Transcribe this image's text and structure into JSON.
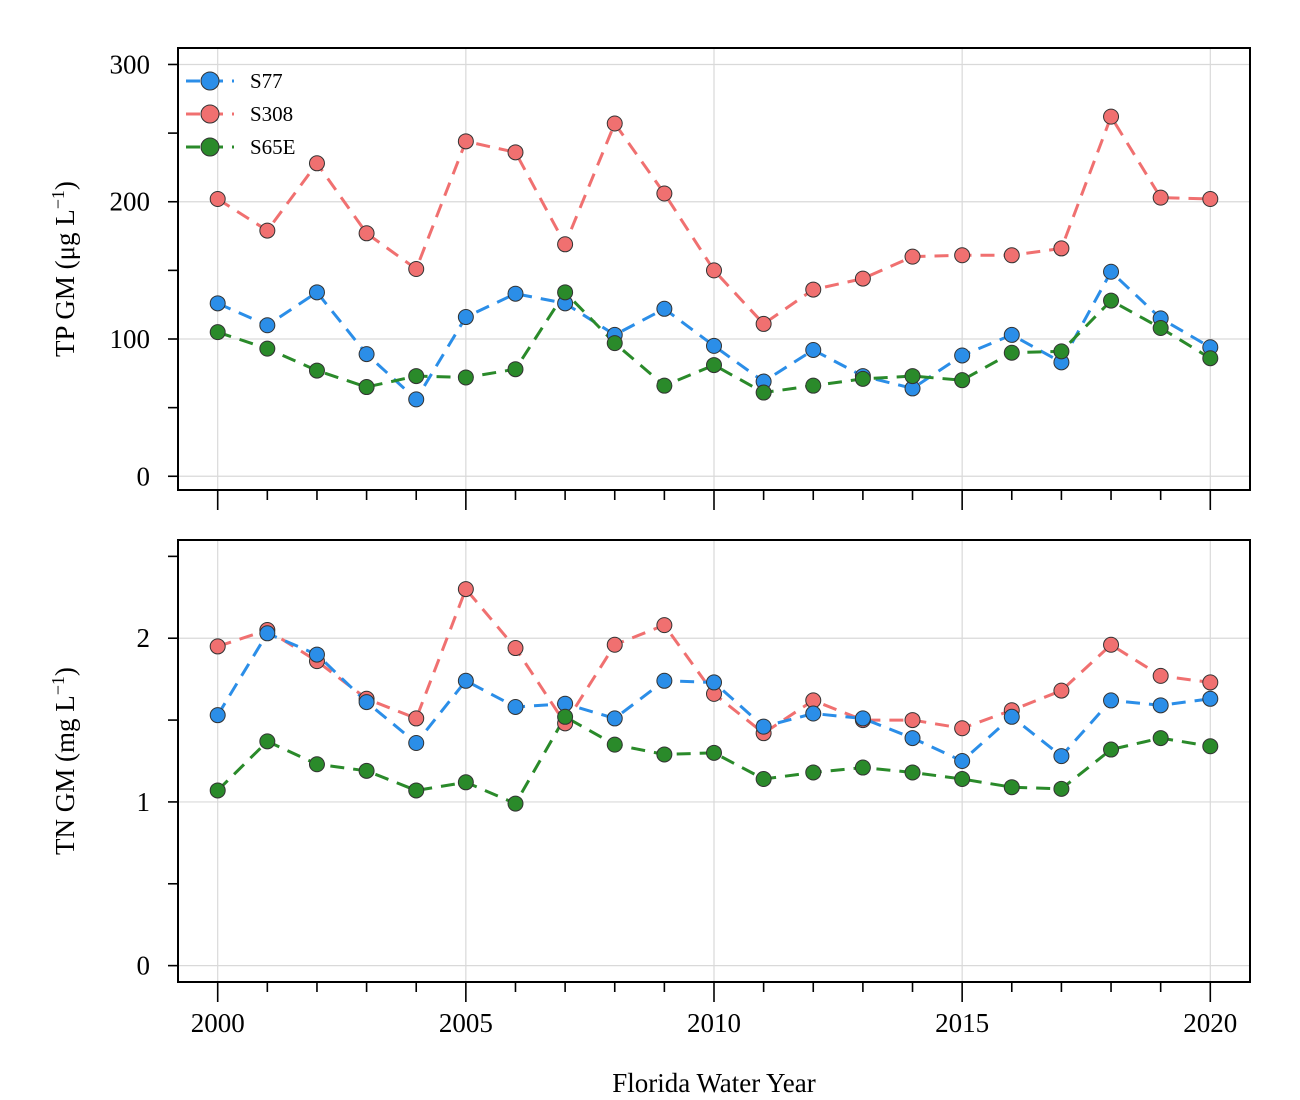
{
  "chart_data": {
    "type": "line",
    "xlabel": "Florida Water Year",
    "x": [
      2000,
      2001,
      2002,
      2003,
      2004,
      2005,
      2006,
      2007,
      2008,
      2009,
      2010,
      2011,
      2012,
      2013,
      2014,
      2015,
      2016,
      2017,
      2018,
      2019,
      2020
    ],
    "xlim": [
      1999.2,
      2020.8
    ],
    "xticks": [
      2000,
      2005,
      2010,
      2015,
      2020
    ],
    "xtick_labels": [
      "2000",
      "2005",
      "2010",
      "2015",
      "2020"
    ],
    "grid": true,
    "legend": {
      "position": "top-left",
      "entries": [
        "S77",
        "S308",
        "S65E"
      ]
    },
    "colors": {
      "S77": "#2b8ee8",
      "S308": "#f07070",
      "S65E": "#2a8a2a"
    },
    "panels": [
      {
        "ylabel_prefix": "TP GM (μg L",
        "ylabel_sup": "−1",
        "ylabel_suffix": ")",
        "ylim": [
          -10,
          312
        ],
        "yticks": [
          0,
          100,
          200,
          300
        ],
        "ytick_labels": [
          "0",
          "100",
          "200",
          "300"
        ],
        "yminor": [
          50,
          150,
          250
        ],
        "series": [
          {
            "name": "S77",
            "values": [
              126,
              110,
              134,
              89,
              56,
              116,
              133,
              126,
              103,
              122,
              95,
              69,
              92,
              73,
              64,
              88,
              103,
              83,
              149,
              115,
              94
            ]
          },
          {
            "name": "S308",
            "values": [
              202,
              179,
              228,
              177,
              151,
              244,
              236,
              169,
              257,
              206,
              150,
              111,
              136,
              144,
              160,
              161,
              161,
              166,
              262,
              203,
              202
            ]
          },
          {
            "name": "S65E",
            "values": [
              105,
              93,
              77,
              65,
              73,
              72,
              78,
              134,
              97,
              66,
              81,
              61,
              66,
              71,
              73,
              70,
              90,
              91,
              128,
              108,
              86
            ]
          }
        ]
      },
      {
        "ylabel_prefix": "TN GM (mg L",
        "ylabel_sup": "−1",
        "ylabel_suffix": ")",
        "ylim": [
          -0.1,
          2.6
        ],
        "yticks": [
          0,
          1,
          2
        ],
        "ytick_labels": [
          "0",
          "1",
          "2"
        ],
        "yminor": [
          0.5,
          1.5,
          2.5
        ],
        "series": [
          {
            "name": "S77",
            "values": [
              1.53,
              2.03,
              1.9,
              1.61,
              1.36,
              1.74,
              1.58,
              1.6,
              1.51,
              1.74,
              1.73,
              1.46,
              1.54,
              1.51,
              1.39,
              1.25,
              1.52,
              1.28,
              1.62,
              1.59,
              1.63
            ]
          },
          {
            "name": "S308",
            "values": [
              1.95,
              2.05,
              1.86,
              1.63,
              1.51,
              2.3,
              1.94,
              1.48,
              1.96,
              2.08,
              1.66,
              1.42,
              1.62,
              1.5,
              1.5,
              1.45,
              1.56,
              1.68,
              1.96,
              1.77,
              1.73
            ]
          },
          {
            "name": "S65E",
            "values": [
              1.07,
              1.37,
              1.23,
              1.19,
              1.07,
              1.12,
              0.99,
              1.52,
              1.35,
              1.29,
              1.3,
              1.14,
              1.18,
              1.21,
              1.18,
              1.14,
              1.09,
              1.08,
              1.32,
              1.39,
              1.34
            ]
          }
        ]
      }
    ]
  }
}
